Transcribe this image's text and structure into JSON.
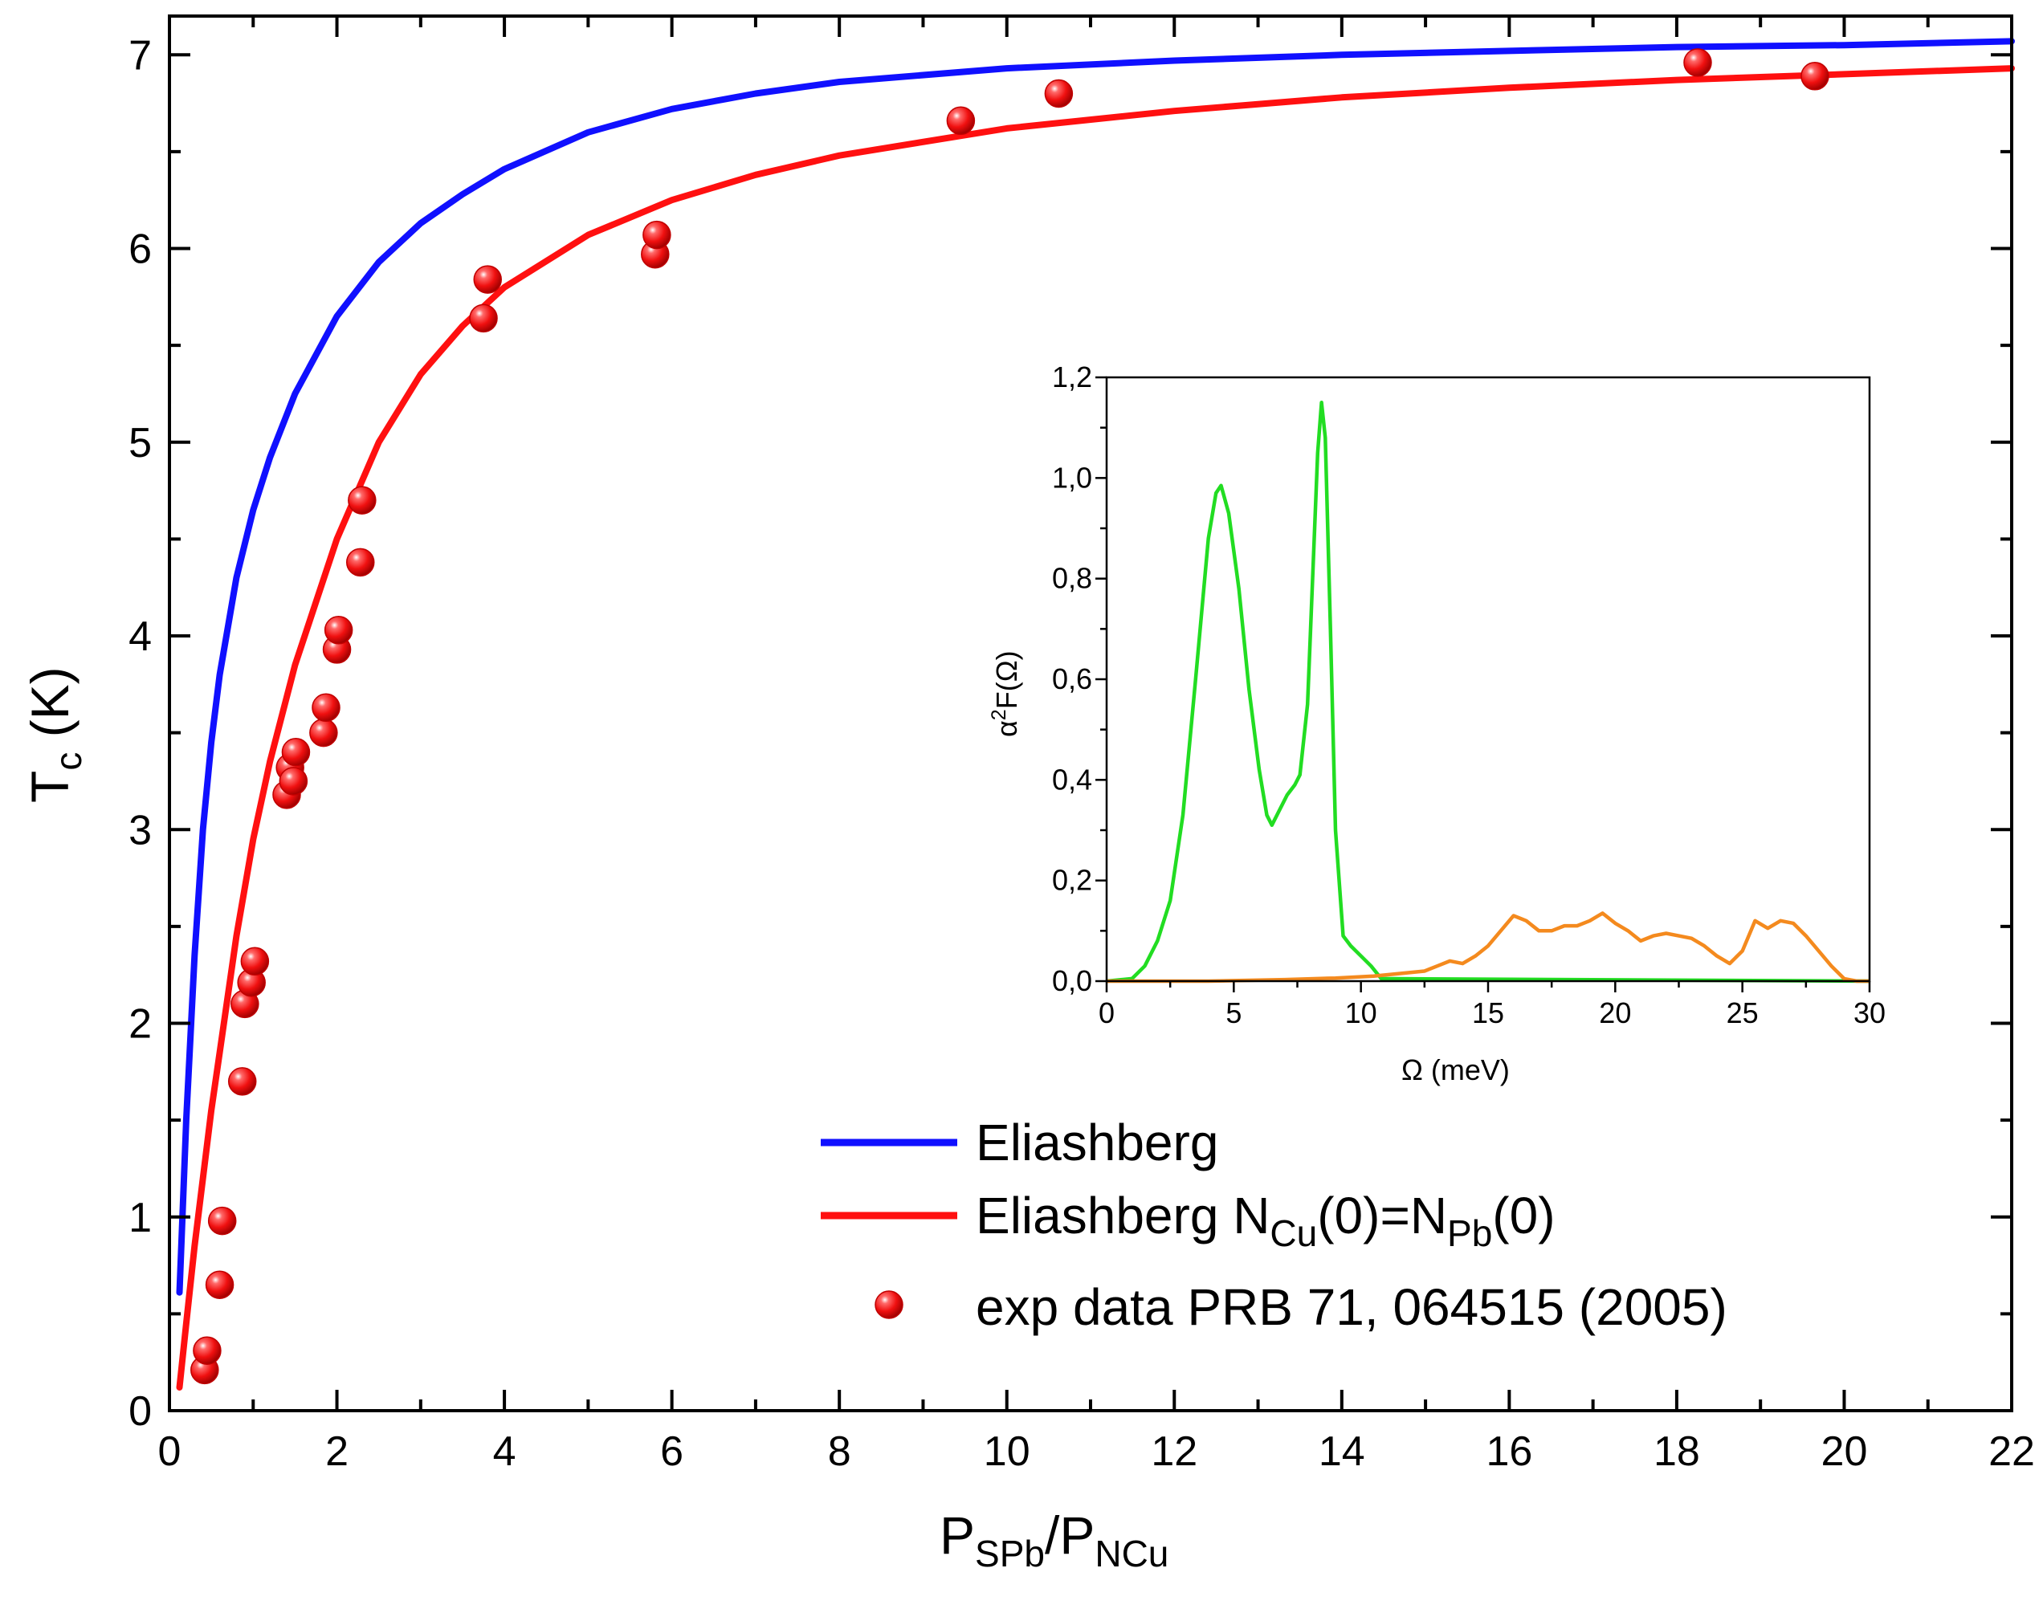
{
  "chart_data": [
    {
      "type": "line",
      "name": "main",
      "xlabel": "P_SPb/P_NCu",
      "xlabel_main": "P",
      "xlabel_sub1": "SPb",
      "xlabel_mid": "/P",
      "xlabel_sub2": "NCu",
      "ylabel_main": "T",
      "ylabel_sub": "c",
      "ylabel_unit": " (K)",
      "xlim": [
        0,
        22
      ],
      "ylim": [
        0,
        7.2
      ],
      "xticks": [
        0,
        2,
        4,
        6,
        8,
        10,
        12,
        14,
        16,
        18,
        20,
        22
      ],
      "yticks": [
        0,
        1,
        2,
        3,
        4,
        5,
        6,
        7
      ],
      "xtick_labels": [
        "0",
        "2",
        "4",
        "6",
        "8",
        "10",
        "12",
        "14",
        "16",
        "18",
        "20",
        "22"
      ],
      "ytick_labels": [
        "0",
        "1",
        "2",
        "3",
        "4",
        "5",
        "6",
        "7"
      ],
      "series": [
        {
          "name": "Eliashberg",
          "kind": "line",
          "color": "#1010ff",
          "x": [
            0.12,
            0.2,
            0.3,
            0.4,
            0.5,
            0.6,
            0.8,
            1.0,
            1.2,
            1.5,
            2.0,
            2.5,
            3.0,
            3.5,
            4.0,
            5.0,
            6.0,
            7.0,
            8.0,
            10.0,
            12.0,
            14.0,
            16.0,
            18.0,
            20.0,
            22.0
          ],
          "y": [
            0.61,
            1.5,
            2.35,
            3.0,
            3.45,
            3.8,
            4.3,
            4.65,
            4.92,
            5.25,
            5.65,
            5.93,
            6.13,
            6.28,
            6.41,
            6.6,
            6.72,
            6.8,
            6.86,
            6.93,
            6.97,
            7.0,
            7.02,
            7.04,
            7.05,
            7.07
          ]
        },
        {
          "name": "Eliashberg N_Cu(0)=N_Pb(0)",
          "kind": "line",
          "color": "#ff1010",
          "x": [
            0.12,
            0.2,
            0.3,
            0.4,
            0.5,
            0.6,
            0.8,
            1.0,
            1.2,
            1.5,
            2.0,
            2.5,
            3.0,
            3.5,
            4.0,
            5.0,
            6.0,
            7.0,
            8.0,
            10.0,
            12.0,
            14.0,
            16.0,
            18.0,
            20.0,
            22.0
          ],
          "y": [
            0.12,
            0.45,
            0.85,
            1.2,
            1.55,
            1.85,
            2.45,
            2.95,
            3.35,
            3.85,
            4.5,
            5.0,
            5.35,
            5.6,
            5.8,
            6.07,
            6.25,
            6.38,
            6.48,
            6.62,
            6.71,
            6.78,
            6.83,
            6.87,
            6.9,
            6.93
          ]
        },
        {
          "name": "exp data PRB 71, 064515 (2005)",
          "kind": "scatter",
          "color": "#ff1010",
          "x": [
            0.42,
            0.45,
            0.6,
            0.63,
            0.87,
            0.9,
            0.98,
            1.02,
            1.4,
            1.44,
            1.48,
            1.51,
            1.84,
            1.87,
            2.0,
            2.02,
            2.28,
            2.3,
            3.75,
            3.8,
            5.8,
            5.82,
            9.45,
            10.62,
            18.25,
            19.65
          ],
          "y": [
            0.21,
            0.31,
            0.65,
            0.98,
            1.7,
            2.1,
            2.21,
            2.32,
            3.18,
            3.32,
            3.25,
            3.4,
            3.5,
            3.63,
            3.93,
            4.03,
            4.38,
            4.7,
            5.64,
            5.84,
            5.97,
            6.07,
            6.66,
            6.8,
            6.96,
            6.89
          ]
        }
      ],
      "legend": {
        "placement": "bottom-right",
        "entries": [
          {
            "label": "Eliashberg",
            "label_main": "Eliashberg",
            "color": "#1010ff",
            "marker": "line"
          },
          {
            "label": "Eliashberg N_Cu(0)=N_Pb(0)",
            "label_main": "Eliashberg N",
            "sub1": "Cu",
            "mid": "(0)=N",
            "sub2": "Pb",
            "end": "(0)",
            "color": "#ff1010",
            "marker": "line"
          },
          {
            "label": "exp data PRB 71, 064515 (2005)",
            "label_main": "exp data PRB 71, 064515 (2005)",
            "color": "#ff1010",
            "marker": "ball"
          }
        ]
      }
    },
    {
      "type": "line",
      "name": "inset",
      "xlabel": "Ω   (meV)",
      "ylabel_main": "α",
      "ylabel_sup": "2",
      "ylabel_rest": "F(Ω)",
      "xlim": [
        0,
        30
      ],
      "ylim": [
        0,
        1.2
      ],
      "xticks": [
        0,
        5,
        10,
        15,
        20,
        25,
        30
      ],
      "yticks": [
        0,
        0.2,
        0.4,
        0.6,
        0.8,
        1.0,
        1.2
      ],
      "xtick_labels": [
        "0",
        "5",
        "10",
        "15",
        "20",
        "25",
        "30"
      ],
      "ytick_labels": [
        "0,0",
        "0,2",
        "0,4",
        "0,6",
        "0,8",
        "1,0",
        "1,2"
      ],
      "series": [
        {
          "name": "green",
          "color": "#22dd22",
          "x": [
            0,
            1.0,
            1.5,
            2.0,
            2.5,
            3.0,
            3.5,
            4.0,
            4.3,
            4.5,
            4.8,
            5.2,
            5.6,
            6.0,
            6.3,
            6.5,
            6.8,
            7.1,
            7.4,
            7.6,
            7.9,
            8.1,
            8.3,
            8.45,
            8.6,
            8.8,
            9.0,
            9.3,
            9.6,
            10.0,
            10.4,
            10.8,
            30
          ],
          "y": [
            0,
            0.005,
            0.03,
            0.08,
            0.16,
            0.33,
            0.6,
            0.88,
            0.97,
            0.985,
            0.93,
            0.78,
            0.58,
            0.42,
            0.33,
            0.31,
            0.34,
            0.37,
            0.39,
            0.41,
            0.55,
            0.8,
            1.05,
            1.15,
            1.08,
            0.7,
            0.3,
            0.09,
            0.07,
            0.05,
            0.03,
            0.005,
            0
          ]
        },
        {
          "name": "orange",
          "color": "#f48a1e",
          "x": [
            0,
            4.0,
            7.0,
            9.0,
            10.5,
            11.5,
            12.5,
            13.0,
            13.5,
            14.0,
            14.5,
            15.0,
            15.5,
            16.0,
            16.5,
            17.0,
            17.5,
            18.0,
            18.5,
            19.0,
            19.5,
            20.0,
            20.5,
            21.0,
            21.5,
            22.0,
            22.5,
            23.0,
            23.5,
            24.0,
            24.5,
            25.0,
            25.5,
            26.0,
            26.5,
            27.0,
            27.5,
            28.0,
            28.5,
            29.0,
            29.5,
            30.0
          ],
          "y": [
            0,
            0.0,
            0.003,
            0.006,
            0.01,
            0.015,
            0.02,
            0.03,
            0.04,
            0.035,
            0.05,
            0.07,
            0.1,
            0.13,
            0.12,
            0.1,
            0.1,
            0.11,
            0.11,
            0.12,
            0.135,
            0.115,
            0.1,
            0.08,
            0.09,
            0.095,
            0.09,
            0.085,
            0.07,
            0.05,
            0.035,
            0.06,
            0.12,
            0.105,
            0.12,
            0.115,
            0.09,
            0.06,
            0.03,
            0.005,
            0.0,
            0.0
          ]
        }
      ]
    }
  ]
}
